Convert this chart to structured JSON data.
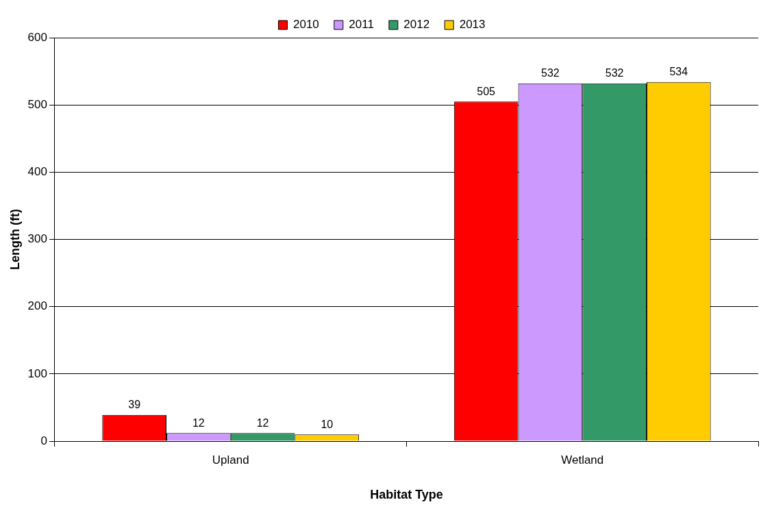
{
  "chart_data": {
    "type": "bar",
    "xlabel": "Habitat Type",
    "ylabel": "Length (ft)",
    "categories": [
      "Upland",
      "Wetland"
    ],
    "series": [
      {
        "name": "2010",
        "color": "#ff0000",
        "values": [
          39,
          505
        ]
      },
      {
        "name": "2011",
        "color": "#cc99ff",
        "values": [
          12,
          532
        ]
      },
      {
        "name": "2012",
        "color": "#339966",
        "values": [
          12,
          532
        ]
      },
      {
        "name": "2013",
        "color": "#ffcc00",
        "values": [
          10,
          534
        ]
      }
    ],
    "ylim": [
      0,
      600
    ],
    "yticks": [
      0,
      100,
      200,
      300,
      400,
      500,
      600
    ],
    "grid": "y",
    "legend": "top",
    "data_labels": true
  }
}
